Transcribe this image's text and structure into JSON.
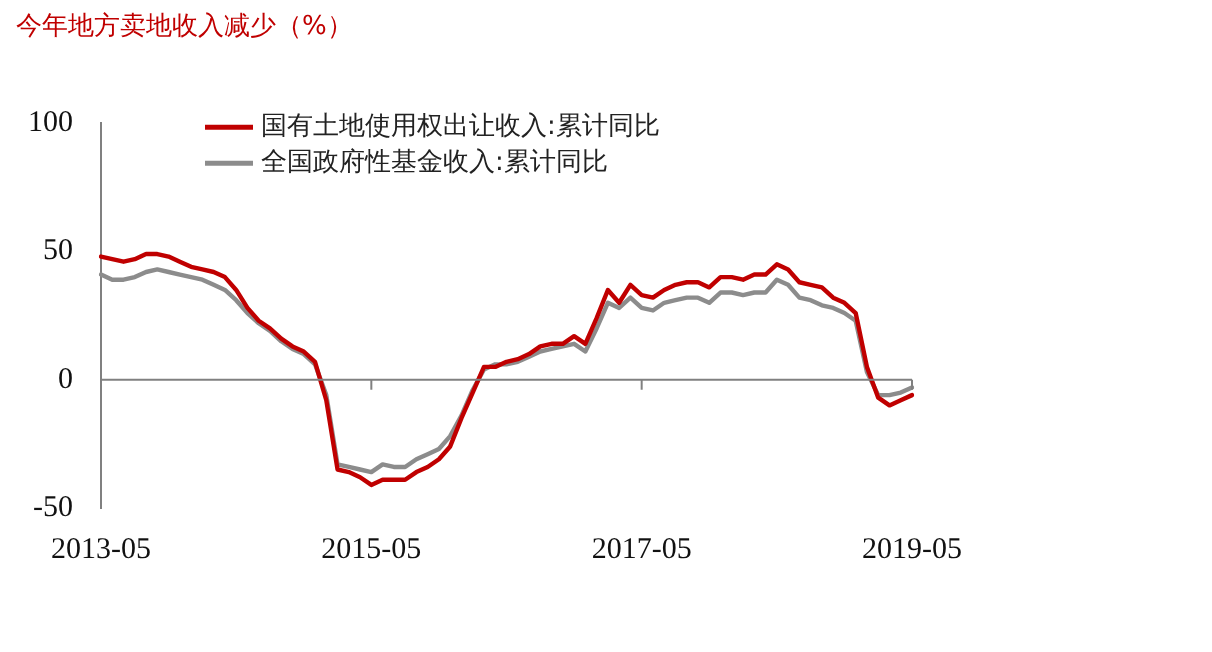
{
  "chart_data": {
    "type": "line",
    "title": "今年地方卖地收入减少（%）",
    "categories": [
      "2013-05",
      null,
      null,
      null,
      null,
      null,
      null,
      null,
      null,
      null,
      null,
      null,
      null,
      null,
      null,
      null,
      null,
      null,
      null,
      null,
      null,
      null,
      null,
      null,
      "2015-05",
      null,
      null,
      null,
      null,
      null,
      null,
      null,
      null,
      null,
      null,
      null,
      null,
      null,
      null,
      null,
      null,
      null,
      null,
      null,
      null,
      null,
      null,
      null,
      "2017-05",
      null,
      null,
      null,
      null,
      null,
      null,
      null,
      null,
      null,
      null,
      null,
      null,
      null,
      null,
      null,
      null,
      null,
      null,
      null,
      null,
      null,
      null,
      null,
      "2019-05"
    ],
    "series": [
      {
        "name": "国有土地使用权出让收入:累计同比",
        "color": "#c00000",
        "values": [
          48,
          47,
          46,
          47,
          49,
          49,
          48,
          46,
          44,
          43,
          42,
          40,
          35,
          28,
          23,
          20,
          16,
          13,
          11,
          7,
          -8,
          -35,
          -36,
          -38,
          -41,
          -39,
          -39,
          -39,
          -36,
          -34,
          -31,
          -26,
          -15,
          -5,
          5,
          5,
          7,
          8,
          10,
          13,
          14,
          14,
          17,
          14,
          24,
          35,
          30,
          37,
          33,
          32,
          35,
          37,
          38,
          38,
          36,
          40,
          40,
          39,
          41,
          41,
          45,
          43,
          38,
          37,
          36,
          32,
          30,
          26,
          5,
          -7,
          -10,
          -8,
          -6
        ]
      },
      {
        "name": "全国政府性基金收入:累计同比",
        "color": "#8c8c8c",
        "values": [
          41,
          39,
          39,
          40,
          42,
          43,
          42,
          41,
          40,
          39,
          37,
          35,
          31,
          26,
          22,
          19,
          15,
          12,
          10,
          6,
          -6,
          -33,
          -34,
          -35,
          -36,
          -33,
          -34,
          -34,
          -31,
          -29,
          -27,
          -22,
          -14,
          -4,
          4,
          6,
          6,
          7,
          9,
          11,
          12,
          13,
          14,
          11,
          20,
          30,
          28,
          32,
          28,
          27,
          30,
          31,
          32,
          32,
          30,
          34,
          34,
          33,
          34,
          34,
          39,
          37,
          32,
          31,
          29,
          28,
          26,
          23,
          3,
          -6,
          -6,
          -5,
          -3
        ]
      }
    ],
    "ylim": [
      -50,
      100
    ],
    "yticks": [
      100,
      50,
      0,
      -50
    ],
    "grid": false,
    "ref_lines": [
      {
        "axis": "y",
        "value": 0,
        "color": "#808080"
      }
    ],
    "legend": "top",
    "marker": "none",
    "line_style": "solid"
  }
}
